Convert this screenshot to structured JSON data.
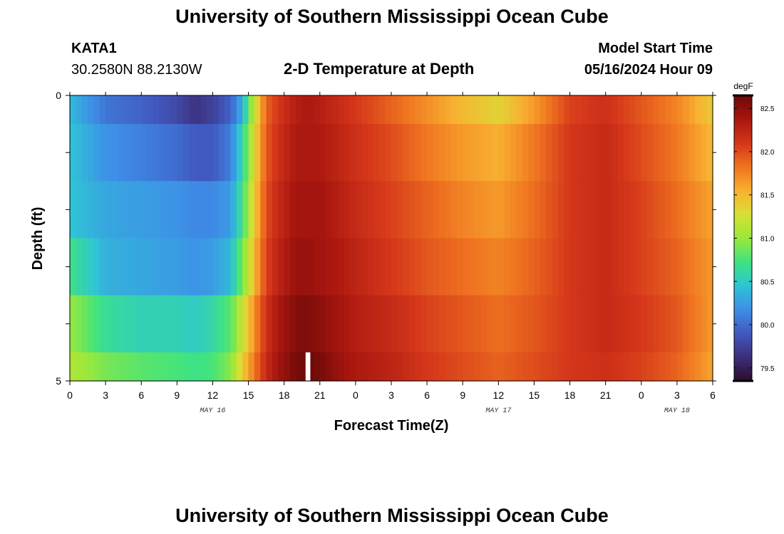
{
  "header": {
    "title": "University of Southern Mississippi Ocean Cube",
    "station": "KATA1",
    "coords": "30.2580N  88.2130W",
    "chart_title": "2-D Temperature at Depth",
    "model_start_label": "Model Start Time",
    "model_start_value": "05/16/2024 Hour 09"
  },
  "footer": {
    "title": "University of Southern Mississippi Ocean Cube"
  },
  "chart_data": {
    "type": "heatmap",
    "title": "2-D Temperature at Depth",
    "xlabel": "Forecast Time(Z)",
    "ylabel": "Depth (ft)",
    "xlim": [
      0,
      54
    ],
    "ylim": [
      0,
      5
    ],
    "x_ticks": [
      {
        "t": 0,
        "label": "0"
      },
      {
        "t": 3,
        "label": "3"
      },
      {
        "t": 6,
        "label": "6"
      },
      {
        "t": 9,
        "label": "9"
      },
      {
        "t": 12,
        "label": "12"
      },
      {
        "t": 15,
        "label": "15"
      },
      {
        "t": 18,
        "label": "18"
      },
      {
        "t": 21,
        "label": "21"
      },
      {
        "t": 24,
        "label": "0"
      },
      {
        "t": 27,
        "label": "3"
      },
      {
        "t": 30,
        "label": "6"
      },
      {
        "t": 33,
        "label": "9"
      },
      {
        "t": 36,
        "label": "12"
      },
      {
        "t": 39,
        "label": "15"
      },
      {
        "t": 42,
        "label": "18"
      },
      {
        "t": 45,
        "label": "21"
      },
      {
        "t": 48,
        "label": "0"
      },
      {
        "t": 51,
        "label": "3"
      },
      {
        "t": 54,
        "label": "6"
      }
    ],
    "date_labels": [
      {
        "t": 12,
        "label": "MAY 16"
      },
      {
        "t": 36,
        "label": "MAY 17"
      },
      {
        "t": 51,
        "label": "MAY 18"
      }
    ],
    "y_ticks": [
      {
        "d": 0,
        "label": "0"
      },
      {
        "d": 1,
        "label": ""
      },
      {
        "d": 2,
        "label": ""
      },
      {
        "d": 3,
        "label": ""
      },
      {
        "d": 4,
        "label": ""
      },
      {
        "d": 5,
        "label": "5"
      }
    ],
    "depth_bands": [
      {
        "top": 0,
        "bottom": 0.5
      },
      {
        "top": 0.5,
        "bottom": 1.5
      },
      {
        "top": 1.5,
        "bottom": 2.5
      },
      {
        "top": 2.5,
        "bottom": 3.5
      },
      {
        "top": 3.5,
        "bottom": 4.5
      },
      {
        "top": 4.5,
        "bottom": 5
      }
    ],
    "time_nodes": [
      0,
      3,
      6,
      9,
      10.5,
      12,
      13.5,
      14.5,
      15.5,
      16.5,
      17.5,
      19,
      20,
      21,
      22.5,
      24,
      27,
      30,
      33,
      36,
      39,
      42,
      45,
      48,
      51,
      54
    ],
    "temperature_degF": [
      [
        80.4,
        80.05,
        79.95,
        79.8,
        79.65,
        79.75,
        79.95,
        80.35,
        81.2,
        81.9,
        82.1,
        82.3,
        82.35,
        82.3,
        82.2,
        82.1,
        81.9,
        81.7,
        81.5,
        81.35,
        81.65,
        82.05,
        82.15,
        81.95,
        81.75,
        81.4
      ],
      [
        80.45,
        80.2,
        80.1,
        80.0,
        79.9,
        79.9,
        80.1,
        80.6,
        81.3,
        81.95,
        82.15,
        82.35,
        82.35,
        82.35,
        82.25,
        82.15,
        82.0,
        81.8,
        81.65,
        81.55,
        81.8,
        82.1,
        82.2,
        82.0,
        81.8,
        81.5
      ],
      [
        80.45,
        80.3,
        80.25,
        80.2,
        80.15,
        80.15,
        80.25,
        80.7,
        81.4,
        82.0,
        82.2,
        82.4,
        82.4,
        82.4,
        82.3,
        82.2,
        82.05,
        81.9,
        81.75,
        81.65,
        81.85,
        82.1,
        82.2,
        82.05,
        81.85,
        81.6
      ],
      [
        80.7,
        80.35,
        80.3,
        80.25,
        80.2,
        80.25,
        80.4,
        80.9,
        81.5,
        82.05,
        82.25,
        82.45,
        82.45,
        82.4,
        82.35,
        82.25,
        82.1,
        81.95,
        81.85,
        81.75,
        81.9,
        82.1,
        82.2,
        82.05,
        81.9,
        81.65
      ],
      [
        81.0,
        80.65,
        80.55,
        80.55,
        80.5,
        80.6,
        80.8,
        81.2,
        81.7,
        82.15,
        82.35,
        82.55,
        82.55,
        82.5,
        82.4,
        82.3,
        82.2,
        82.05,
        81.95,
        81.85,
        81.95,
        82.1,
        82.2,
        82.1,
        81.95,
        81.65
      ],
      [
        81.1,
        80.9,
        80.8,
        80.75,
        80.7,
        80.75,
        80.95,
        81.4,
        81.8,
        82.2,
        82.4,
        82.6,
        82.65,
        82.6,
        82.45,
        82.35,
        82.25,
        82.1,
        82.0,
        81.9,
        82.0,
        82.1,
        82.15,
        82.05,
        81.9,
        81.6
      ]
    ],
    "gap_marker": {
      "t_start": 19.8,
      "t_end": 20.2,
      "depth_top": 4.5,
      "depth_bottom": 5
    },
    "colorbar": {
      "unit": "degF",
      "min": 79.35,
      "max": 82.65,
      "tick_values": [
        79.5,
        80.0,
        80.5,
        81.0,
        81.5,
        82.0,
        82.5
      ],
      "tick_labels": [
        "79.5",
        "80.0",
        "80.5",
        "81.0",
        "81.5",
        "82.0",
        "82.5"
      ],
      "colormap": [
        "#2a0c2e",
        "#3d2f7a",
        "#4159c0",
        "#3e8ee8",
        "#2fc4d4",
        "#3fe380",
        "#9ae83a",
        "#d8e036",
        "#f8b030",
        "#ef7320",
        "#d4361a",
        "#a8160f",
        "#6c0a08"
      ]
    }
  }
}
